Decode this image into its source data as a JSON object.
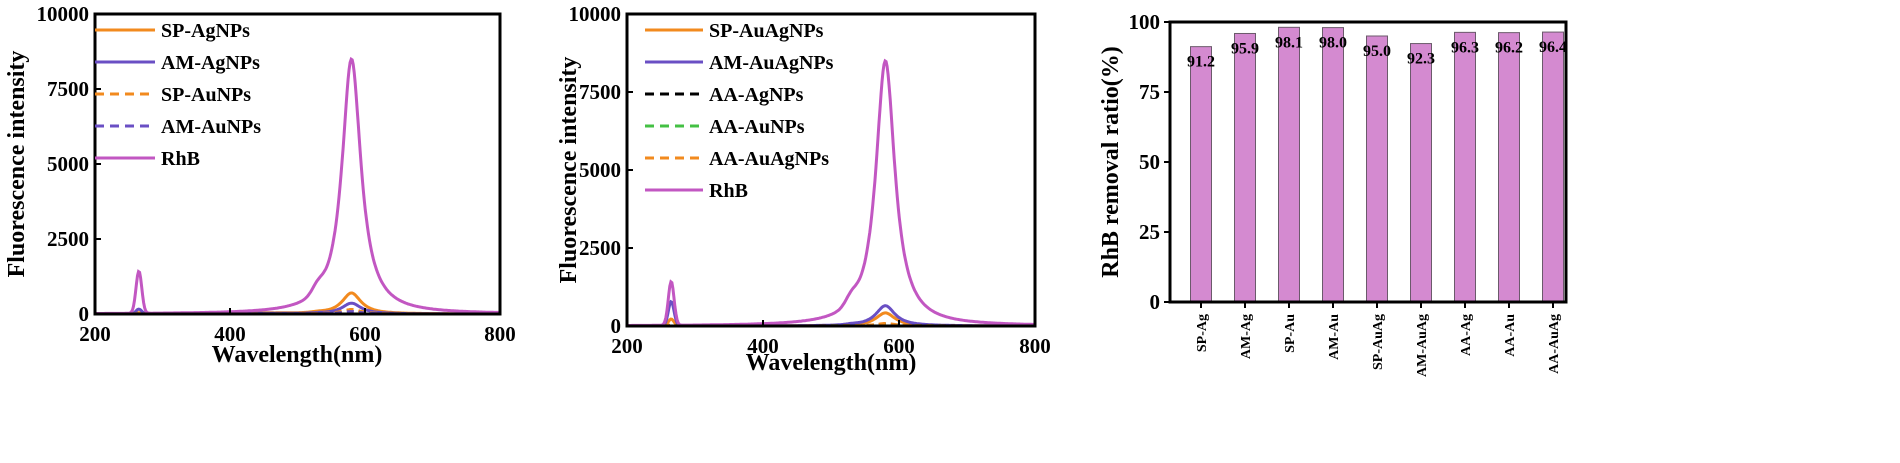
{
  "chart_data": [
    {
      "type": "line",
      "xlabel": "Wavelength(nm)",
      "ylabel": "Fluorescence intensity",
      "xlim": [
        200,
        800
      ],
      "ylim": [
        0,
        10000
      ],
      "xticks": [
        "200",
        "400",
        "600",
        "800"
      ],
      "yticks": [
        "0",
        "2500",
        "5000",
        "7500",
        "10000"
      ],
      "series": [
        {
          "name": "SP-AgNPs",
          "color": "#f28a1e",
          "dash": "solid",
          "main_peak": 700,
          "side_peak": 40,
          "base": 30
        },
        {
          "name": "AM-AgNPs",
          "color": "#6a4fc4",
          "dash": "solid",
          "main_peak": 360,
          "side_peak": 160,
          "base": 20
        },
        {
          "name": "SP-AuNPs",
          "color": "#f28a1e",
          "dash": "dashed",
          "main_peak": 150,
          "side_peak": 20,
          "base": 10
        },
        {
          "name": "AM-AuNPs",
          "color": "#6a4fc4",
          "dash": "dashed",
          "main_peak": 80,
          "side_peak": 10,
          "base": 5
        },
        {
          "name": "RhB",
          "color": "#c257c2",
          "dash": "solid",
          "main_peak": 8500,
          "side_peak": 1400,
          "base": 0
        }
      ]
    },
    {
      "type": "line",
      "xlabel": "Wavelength(nm)",
      "ylabel": "Fluorescence intensity",
      "xlim": [
        200,
        800
      ],
      "ylim": [
        0,
        10000
      ],
      "xticks": [
        "200",
        "400",
        "600",
        "800"
      ],
      "yticks": [
        "0",
        "2500",
        "5000",
        "7500",
        "10000"
      ],
      "series": [
        {
          "name": "SP-AuAgNPs",
          "color": "#f28a1e",
          "dash": "solid",
          "main_peak": 420,
          "side_peak": 220,
          "base": 0
        },
        {
          "name": "AM-AuAgNPs",
          "color": "#6a4fc4",
          "dash": "solid",
          "main_peak": 650,
          "side_peak": 780,
          "base": 0
        },
        {
          "name": "AA-AgNPs",
          "color": "#000000",
          "dash": "dashed",
          "main_peak": 60,
          "side_peak": 20,
          "base": 0
        },
        {
          "name": "AA-AuNPs",
          "color": "#44c044",
          "dash": "dashed",
          "main_peak": 40,
          "side_peak": 15,
          "base": 0
        },
        {
          "name": "AA-AuAgNPs",
          "color": "#f28a1e",
          "dash": "dashed",
          "main_peak": 80,
          "side_peak": 30,
          "base": 0
        },
        {
          "name": "RhB",
          "color": "#c257c2",
          "dash": "solid",
          "main_peak": 8500,
          "side_peak": 1400,
          "base": 0
        }
      ]
    },
    {
      "type": "bar",
      "ylabel": "RhB removal ratio(%)",
      "ylim": [
        0,
        100
      ],
      "yticks": [
        "0",
        "25",
        "50",
        "75",
        "100"
      ],
      "bar_color": "#d48ad0",
      "categories": [
        "SP-Ag",
        "AM-Ag",
        "SP-Au",
        "AM-Au",
        "SP-AuAg",
        "AM-AuAg",
        "AA-Ag",
        "AA-Au",
        "AA-AuAg"
      ],
      "values": [
        91.2,
        95.9,
        98.1,
        98.0,
        95.0,
        92.3,
        96.3,
        96.2,
        96.4
      ],
      "labels": [
        "91.2",
        "95.9",
        "98.1",
        "98.0",
        "95.0",
        "92.3",
        "96.3",
        "96.2",
        "96.4"
      ]
    }
  ]
}
